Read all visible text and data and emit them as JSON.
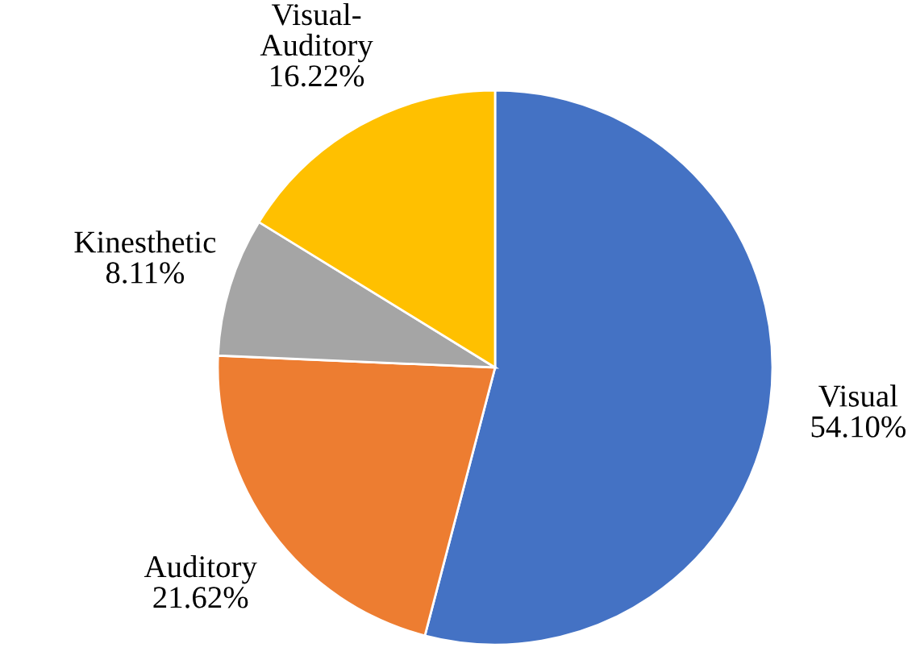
{
  "chart_data": {
    "type": "pie",
    "categories": [
      "Visual",
      "Auditory",
      "Kinesthetic",
      "Visual-Auditory"
    ],
    "values": [
      54.1,
      21.62,
      8.11,
      16.22
    ],
    "value_labels": [
      "54.10%",
      "21.62%",
      "8.11%",
      "16.22%"
    ],
    "colors": [
      "#4472c4",
      "#ed7d31",
      "#a5a5a5",
      "#ffc000"
    ],
    "legend": false
  }
}
